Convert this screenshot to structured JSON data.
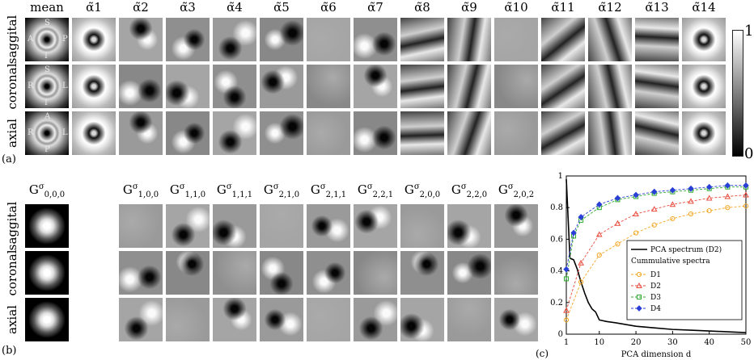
{
  "panel_a": {
    "label": "(a)",
    "columns": [
      "mean",
      "α̃1",
      "α̃2",
      "α̃3",
      "α̃4",
      "α̃5",
      "α̃6",
      "α̃7",
      "α̃8",
      "α̃9",
      "α̃10",
      "α̃11",
      "α̃12",
      "α̃13",
      "α̃14"
    ],
    "rows": [
      "saggital",
      "coronal",
      "axial"
    ],
    "orientation": {
      "saggital": {
        "top": "S",
        "bottom": "I",
        "left": "A",
        "right": "P"
      },
      "coronal": {
        "top": "S",
        "bottom": "I",
        "left": "R",
        "right": "L"
      },
      "axial": {
        "top": "A",
        "bottom": "P",
        "left": "R",
        "right": "L"
      }
    },
    "colorbar": {
      "max": "1",
      "min": "0"
    }
  },
  "panel_b": {
    "label": "(b)",
    "first_column": "G",
    "first_sub": "0,0,0",
    "columns": [
      {
        "base": "G",
        "sub": "1,0,0"
      },
      {
        "base": "G",
        "sub": "1,1,0"
      },
      {
        "base": "G",
        "sub": "1,1,1"
      },
      {
        "base": "G",
        "sub": "2,1,0"
      },
      {
        "base": "G",
        "sub": "2,1,1"
      },
      {
        "base": "G",
        "sub": "2,2,1"
      },
      {
        "base": "G",
        "sub": "2,0,0"
      },
      {
        "base": "G",
        "sub": "2,2,0"
      },
      {
        "base": "G",
        "sub": "2,0,2"
      }
    ],
    "sup": "σ",
    "rows": [
      "saggital",
      "coronal",
      "axial"
    ]
  },
  "panel_c": {
    "label": "(c)",
    "chart_data": {
      "type": "line",
      "xlabel": "PCA dimension d",
      "ylabel": "",
      "xlim": [
        1,
        50
      ],
      "ylim": [
        0,
        1
      ],
      "xticks": [
        1,
        10,
        20,
        30,
        40,
        50
      ],
      "yticks": [
        0,
        0.2,
        0.4,
        0.6,
        0.8,
        1
      ],
      "legend_position": "bottom-right",
      "legend_header": "Cummulative spectra",
      "series": [
        {
          "name": "PCA spectrum (D2)",
          "color": "#000000",
          "marker": "none",
          "x": [
            1,
            2,
            3,
            4,
            5,
            6,
            7,
            8,
            9,
            10,
            12,
            15,
            20,
            25,
            30,
            35,
            40,
            45,
            50
          ],
          "y": [
            0.98,
            0.48,
            0.47,
            0.41,
            0.33,
            0.26,
            0.2,
            0.16,
            0.14,
            0.09,
            0.08,
            0.07,
            0.05,
            0.04,
            0.03,
            0.025,
            0.02,
            0.015,
            0.01
          ]
        },
        {
          "name": "D1",
          "color": "#f5a623",
          "marker": "circle",
          "x": [
            1,
            5,
            10,
            15,
            20,
            25,
            30,
            35,
            40,
            45,
            50
          ],
          "y": [
            0.09,
            0.33,
            0.5,
            0.57,
            0.64,
            0.69,
            0.73,
            0.76,
            0.78,
            0.8,
            0.81
          ]
        },
        {
          "name": "D2",
          "color": "#e94b3c",
          "marker": "triangle",
          "x": [
            1,
            5,
            10,
            15,
            20,
            25,
            30,
            35,
            40,
            45,
            50
          ],
          "y": [
            0.15,
            0.45,
            0.63,
            0.7,
            0.76,
            0.79,
            0.82,
            0.84,
            0.86,
            0.87,
            0.88
          ]
        },
        {
          "name": "D3",
          "color": "#2eaa2e",
          "marker": "square",
          "x": [
            1,
            3,
            5,
            10,
            15,
            20,
            25,
            30,
            35,
            40,
            45,
            50
          ],
          "y": [
            0.35,
            0.62,
            0.72,
            0.8,
            0.85,
            0.87,
            0.89,
            0.9,
            0.91,
            0.92,
            0.93,
            0.93
          ]
        },
        {
          "name": "D4",
          "color": "#2a3fd6",
          "marker": "diamond",
          "x": [
            1,
            3,
            5,
            10,
            15,
            20,
            25,
            30,
            35,
            40,
            45,
            50
          ],
          "y": [
            0.41,
            0.64,
            0.74,
            0.82,
            0.86,
            0.88,
            0.9,
            0.91,
            0.92,
            0.93,
            0.94,
            0.94
          ]
        }
      ]
    }
  }
}
